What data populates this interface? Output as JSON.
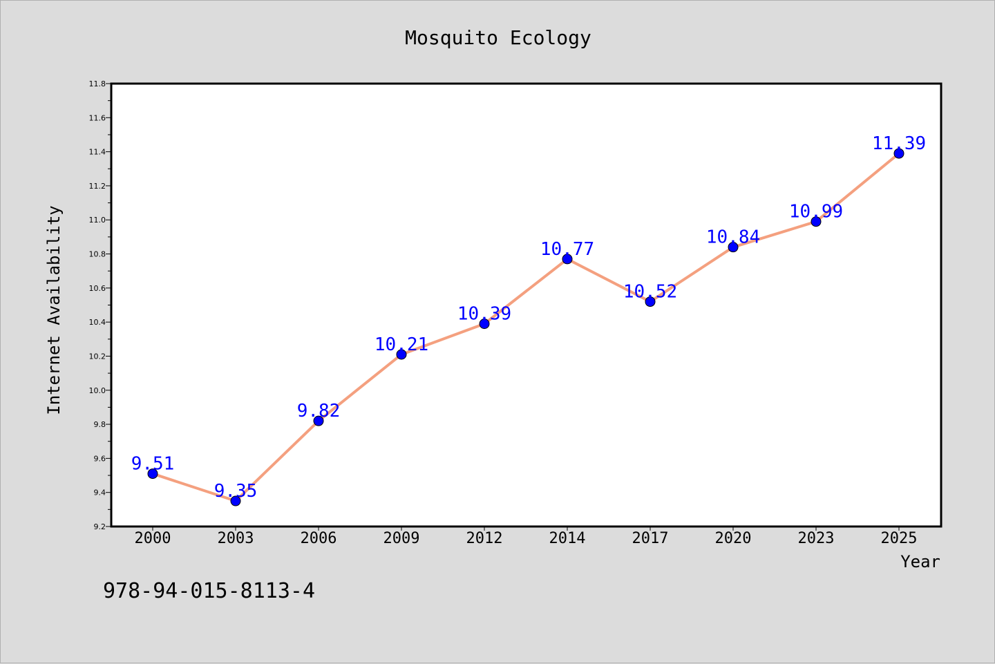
{
  "chart_data": {
    "type": "line",
    "title": "Mosquito Ecology",
    "xlabel": "Year",
    "ylabel": "Internet Availability",
    "categories": [
      "2000",
      "2003",
      "2006",
      "2009",
      "2012",
      "2014",
      "2017",
      "2020",
      "2023",
      "2025"
    ],
    "series": [
      {
        "values": [
          9.51,
          9.35,
          9.82,
          10.21,
          10.39,
          10.77,
          10.52,
          10.84,
          10.99,
          11.39
        ],
        "data_labels": [
          "9.51",
          "9.35",
          "9.82",
          "10.21",
          "10.39",
          "10.77",
          "10.52",
          "10.84",
          "10.99",
          "11.39"
        ],
        "line_color": "#f4a07f",
        "marker_color": "#0000ff"
      }
    ],
    "ylim": [
      9.2,
      11.8
    ],
    "yticks": [
      "9.2",
      "9.4",
      "9.6",
      "9.8",
      "10.0",
      "10.2",
      "10.4",
      "10.6",
      "10.8",
      "11.0",
      "11.2",
      "11.4",
      "11.6",
      "11.8"
    ],
    "grid": false,
    "legend": "none",
    "background_color": "#dcdcdc",
    "plot_background": "#ffffff",
    "data_label_color": "#0000ff"
  },
  "annotation": {
    "isbn": "978-94-015-8113-4"
  }
}
